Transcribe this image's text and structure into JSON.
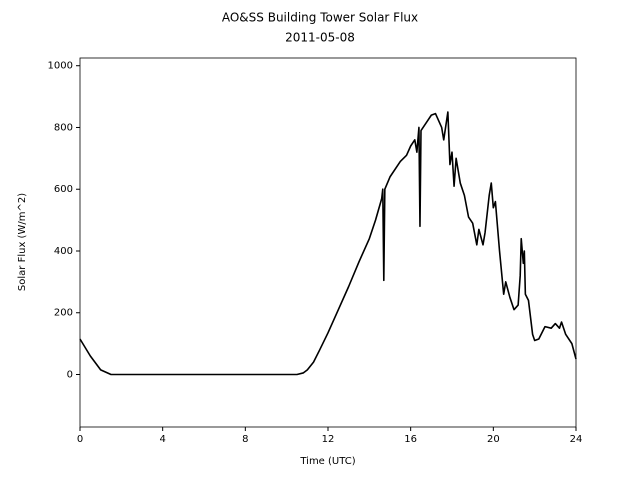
{
  "chart_data": {
    "type": "line",
    "title": "AO&SS Building Tower Solar Flux",
    "subtitle": "2011-05-08",
    "xlabel": "Time (UTC)",
    "ylabel": "Solar Flux (W/m^2)",
    "xlim": [
      0,
      24
    ],
    "xticks": [
      0,
      4,
      8,
      12,
      16,
      20,
      24
    ],
    "ylim": [
      -170,
      1025
    ],
    "yticks": [
      0,
      200,
      400,
      600,
      800,
      1000
    ],
    "grid": false,
    "series": [
      {
        "name": "Solar Flux",
        "color": "#000000",
        "x": [
          0,
          0.5,
          1,
          1.5,
          10.5,
          10.8,
          11,
          11.3,
          11.6,
          12,
          12.5,
          13,
          13.5,
          14,
          14.3,
          14.6,
          14.65,
          14.7,
          14.75,
          15,
          15.5,
          15.8,
          16,
          16.2,
          16.3,
          16.4,
          16.45,
          16.5,
          16.8,
          17,
          17.2,
          17.5,
          17.6,
          17.8,
          17.9,
          18,
          18.1,
          18.2,
          18.4,
          18.6,
          18.8,
          19,
          19.2,
          19.3,
          19.5,
          19.6,
          19.8,
          19.9,
          20,
          20.1,
          20.3,
          20.5,
          20.6,
          20.8,
          21,
          21.2,
          21.3,
          21.35,
          21.45,
          21.5,
          21.55,
          21.7,
          21.9,
          22,
          22.2,
          22.5,
          22.8,
          23,
          23.2,
          23.3,
          23.5,
          23.8,
          24
        ],
        "values": [
          115,
          60,
          15,
          0,
          0,
          5,
          15,
          40,
          80,
          135,
          210,
          285,
          365,
          440,
          500,
          570,
          600,
          305,
          600,
          640,
          690,
          710,
          740,
          760,
          720,
          800,
          480,
          790,
          820,
          840,
          845,
          800,
          760,
          850,
          680,
          720,
          610,
          700,
          620,
          580,
          510,
          490,
          420,
          470,
          420,
          460,
          580,
          620,
          540,
          560,
          400,
          260,
          300,
          250,
          210,
          225,
          320,
          440,
          360,
          400,
          260,
          240,
          130,
          110,
          115,
          155,
          150,
          165,
          150,
          170,
          130,
          100,
          50
        ]
      }
    ]
  }
}
